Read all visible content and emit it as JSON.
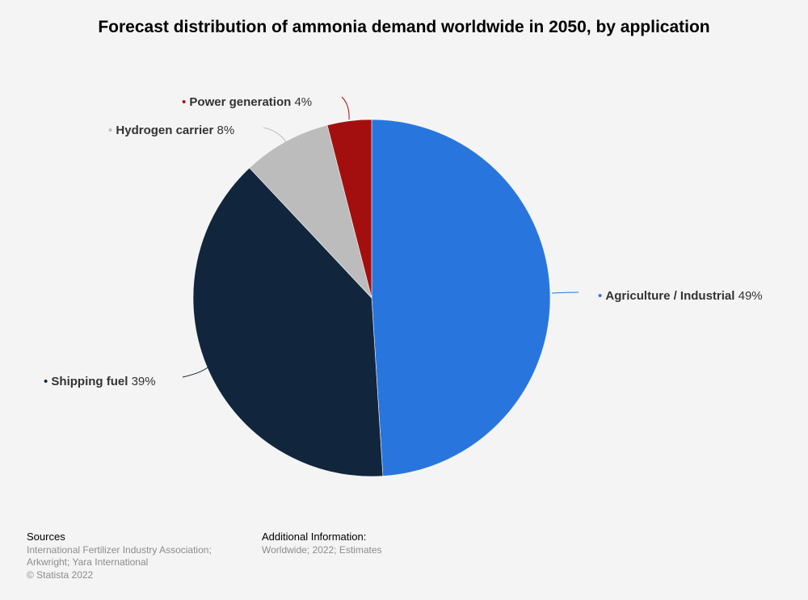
{
  "chart_data": {
    "type": "pie",
    "title": "Forecast distribution of ammonia demand worldwide in 2050, by application",
    "slices": [
      {
        "label": "Agriculture / Industrial",
        "value": 49,
        "value_label": "49%",
        "color": "#2876dd"
      },
      {
        "label": "Shipping fuel",
        "value": 39,
        "value_label": "39%",
        "color": "#11263c"
      },
      {
        "label": "Hydrogen carrier",
        "value": 8,
        "value_label": "8%",
        "color": "#bcbcbc"
      },
      {
        "label": "Power generation",
        "value": 4,
        "value_label": "4%",
        "color": "#a30f0f"
      }
    ],
    "legend": "none",
    "data_labels": "outside with leader lines"
  },
  "footer": {
    "sources_heading": "Sources",
    "sources_line1": "International Fertilizer Industry Association;",
    "sources_line2": "Arkwright; Yara International",
    "copyright": "© Statista 2022",
    "additional_heading": "Additional Information:",
    "additional_text": "Worldwide; 2022; Estimates"
  }
}
